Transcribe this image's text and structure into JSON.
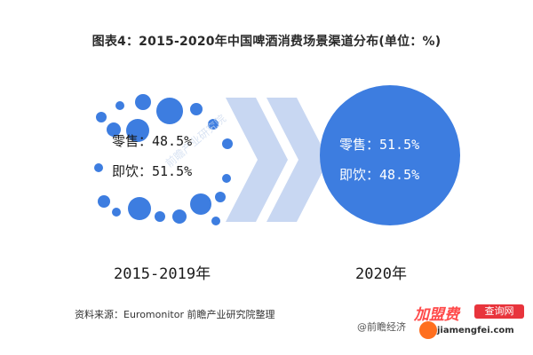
{
  "title": "图表4：2015-2020年中国啤酒消费场景渠道分布(单位：%)",
  "chart_data": {
    "type": "bubble-comparison",
    "title": "图表4：2015-2020年中国啤酒消费场景渠道分布(单位：%)",
    "groups": [
      {
        "period": "2015-2019年",
        "items": [
          {
            "label": "零售",
            "value": 48.5,
            "text": "零售：48.5%"
          },
          {
            "label": "即饮",
            "value": 51.5,
            "text": "即饮：51.5%"
          }
        ]
      },
      {
        "period": "2020年",
        "items": [
          {
            "label": "零售",
            "value": 51.5,
            "text": "零售：51.5%"
          },
          {
            "label": "即饮",
            "value": 48.5,
            "text": "即饮：48.5%"
          }
        ]
      }
    ],
    "unit": "%"
  },
  "source": "资料来源：Euromonitor 前瞻产业研究院整理",
  "watermark": "前瞻产业研究院",
  "brand": "@前瞻经济",
  "badge": {
    "title": "加盟费",
    "tag": "查询网",
    "url": "jiamengfei.com"
  },
  "colors": {
    "primary": "#3d7de0",
    "chevron": "#c8d7f2",
    "badge_red": "#e8343c"
  }
}
